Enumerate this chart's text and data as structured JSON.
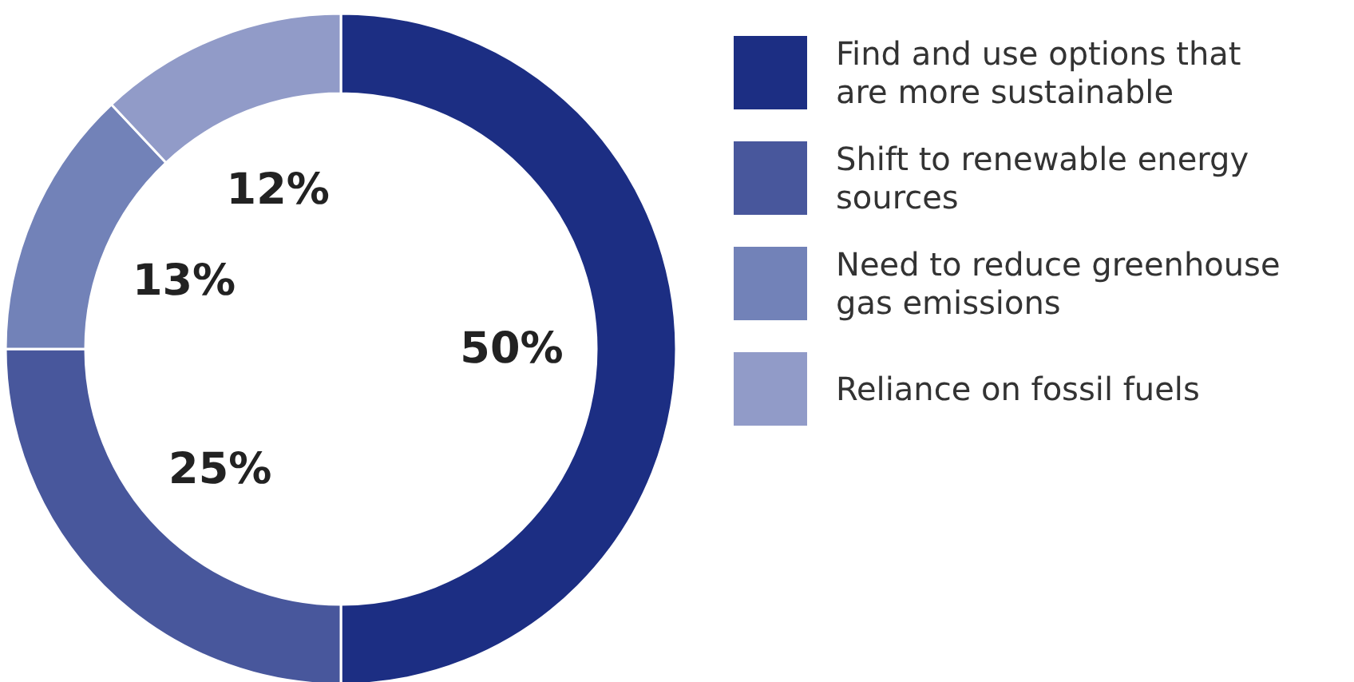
{
  "chart_data": {
    "type": "donut",
    "categories": [
      "Find and use options that are more sustainable",
      "Shift to renewable energy sources",
      "Need to reduce greenhouse gas emissions",
      "Reliance on fossil fuels"
    ],
    "values": [
      50,
      25,
      13,
      12
    ],
    "colors": [
      "#1c2e83",
      "#48579c",
      "#7282b8",
      "#919bc8"
    ],
    "value_labels": [
      "50%",
      "25%",
      "13%",
      "12%"
    ],
    "legend": "right"
  }
}
